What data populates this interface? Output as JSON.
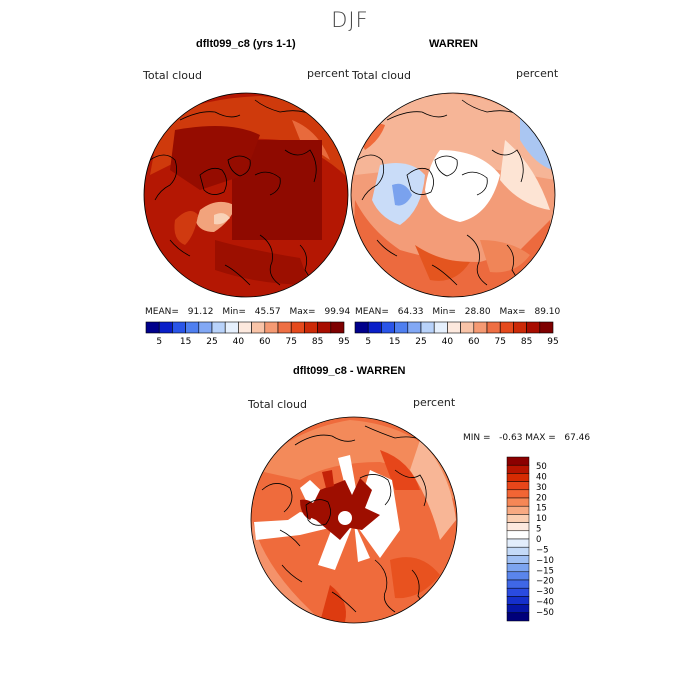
{
  "season": "DJF",
  "panels": {
    "top_left": {
      "title": "dflt099_c8 (yrs 1-1)",
      "variable": "Total cloud",
      "units": "percent",
      "mean_label": "MEAN=",
      "mean": "91.12",
      "min_label": "Min=",
      "min": "45.57",
      "max_label": "Max=",
      "max": "99.94"
    },
    "top_right": {
      "title": "WARREN",
      "variable": "Total cloud",
      "units": "percent",
      "mean_label": "MEAN=",
      "mean": "64.33",
      "min_label": "Min=",
      "min": "28.80",
      "max_label": "Max=",
      "max": "89.10"
    },
    "bottom": {
      "title": "dflt099_c8 - WARREN",
      "variable": "Total cloud",
      "units": "percent",
      "minmax": "MIN =   -0.63 MAX =   67.46"
    }
  },
  "abs_colorbar": {
    "colors": [
      "#00008b",
      "#0a1fc8",
      "#2a55e8",
      "#4f7ff0",
      "#82a8f5",
      "#b8d2fa",
      "#e6f0fd",
      "#fde9de",
      "#f9c4a8",
      "#f59a73",
      "#ee6f44",
      "#e54a1d",
      "#cc2a08",
      "#a80d00",
      "#7e0000"
    ],
    "tick_labels": [
      "5",
      "15",
      "25",
      "40",
      "60",
      "75",
      "85",
      "95"
    ]
  },
  "diff_colorbar": {
    "colors_top_to_bottom": [
      "#8b0000",
      "#b81400",
      "#d62b02",
      "#e8461a",
      "#f26534",
      "#f68756",
      "#f8aa82",
      "#fbcfb2",
      "#fde9de",
      "#ffffff",
      "#e3eefc",
      "#c4daf8",
      "#a0c0f4",
      "#7ca4f0",
      "#5a85ec",
      "#3f67e6",
      "#2a4be0",
      "#1530cc",
      "#0616a8",
      "#00007a"
    ],
    "tick_labels": [
      "50",
      "40",
      "30",
      "20",
      "15",
      "10",
      "5",
      "0",
      "−5",
      "−10",
      "−15",
      "−20",
      "−30",
      "−40",
      "−50"
    ]
  }
}
